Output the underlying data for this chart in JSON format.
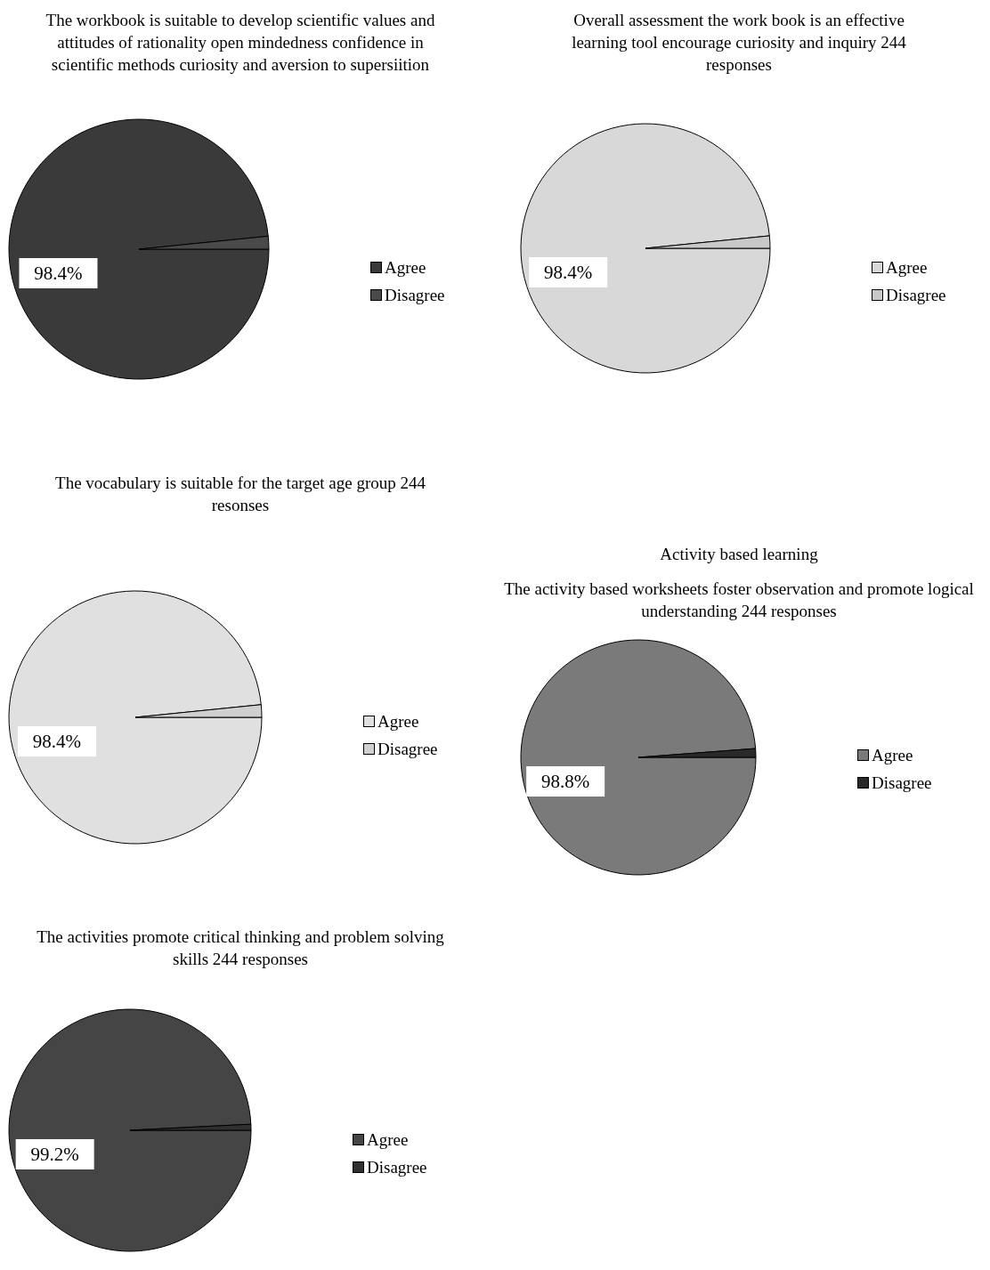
{
  "chart_data": [
    {
      "type": "pie",
      "title": "The workbook is suitable to develop scientific values and attitudes of rationality open mindedness confidence in scientific methods curiosity and aversion to supersiition",
      "categories": [
        "Agree",
        "Disagree"
      ],
      "values": [
        98.4,
        1.6
      ],
      "value_labels": [
        "98.4%",
        null
      ],
      "colors": [
        "#3a3a3a",
        "#4a4a4a"
      ],
      "legend": "right"
    },
    {
      "type": "pie",
      "title": "Overall assessment the work book is an effective learning tool encourage curiosity and inquiry 244 responses",
      "categories": [
        "Agree",
        "Disagree"
      ],
      "values": [
        98.4,
        1.6
      ],
      "value_labels": [
        "98.4%",
        null
      ],
      "colors": [
        "#d8d8d8",
        "#c8c8c8"
      ],
      "legend": "right"
    },
    {
      "type": "pie",
      "title": "The vocabulary is suitable for the target age group 244 resonses",
      "categories": [
        "Agree",
        "Disagree"
      ],
      "values": [
        98.4,
        1.6
      ],
      "value_labels": [
        "98.4%",
        null
      ],
      "colors": [
        "#e0e0e0",
        "#d0d0d0"
      ],
      "legend": "right"
    },
    {
      "type": "pie",
      "title": "Activity based learning",
      "subtitle": "The activity based worksheets foster observation and promote logical understanding 244 responses",
      "categories": [
        "Agree",
        "Disagree"
      ],
      "values": [
        98.8,
        1.2
      ],
      "value_labels": [
        "98.8%",
        null
      ],
      "colors": [
        "#7a7a7a",
        "#2a2a2a"
      ],
      "legend": "right"
    },
    {
      "type": "pie",
      "title": "The activities promote critical thinking and problem solving skills 244 responses",
      "categories": [
        "Agree",
        "Disagree"
      ],
      "values": [
        99.2,
        0.8
      ],
      "value_labels": [
        "99.2%",
        null
      ],
      "colors": [
        "#454545",
        "#303030"
      ],
      "legend": "right"
    }
  ]
}
